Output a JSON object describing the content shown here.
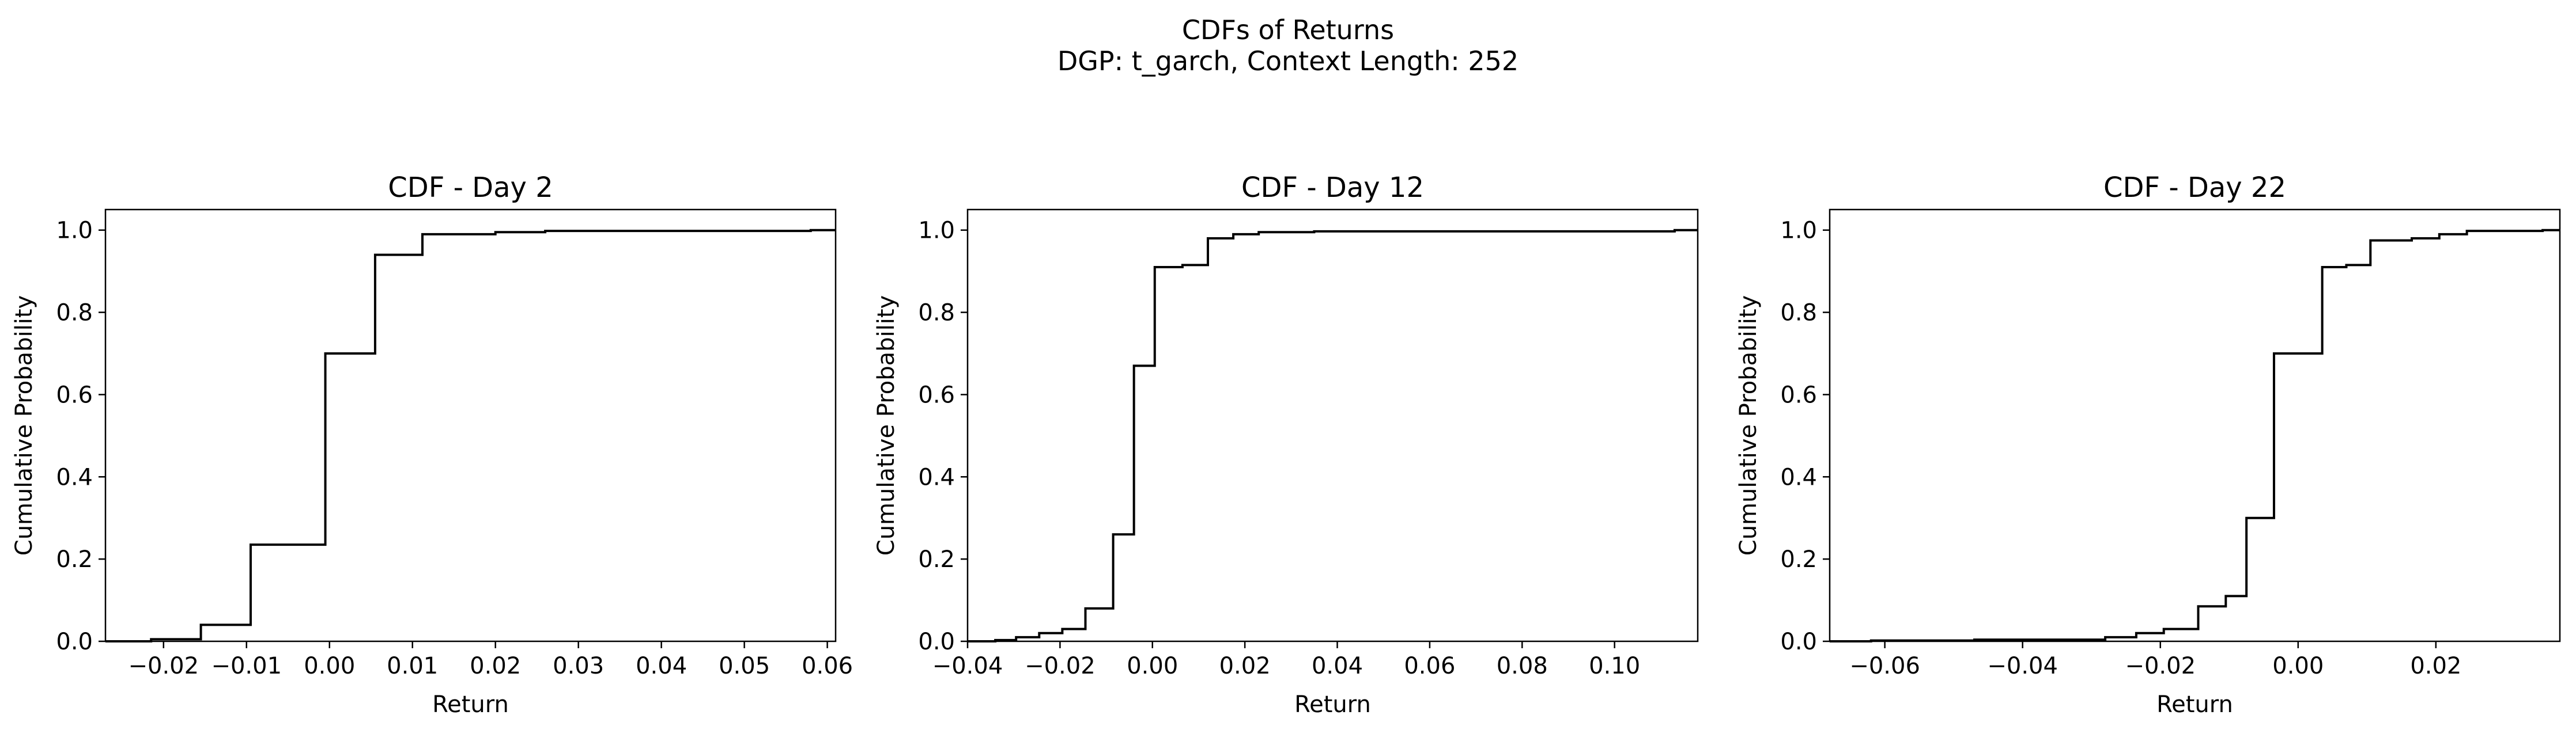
{
  "figure": {
    "title_line1": "CDFs of Returns",
    "title_line2": "DGP: t_garch, Context Length: 252"
  },
  "chart_data": [
    {
      "type": "line",
      "drawstyle": "steps",
      "title": "CDF - Day 2",
      "xlabel": "Return",
      "ylabel": "Cumulative Probability",
      "xlim": [
        -0.027,
        0.061
      ],
      "ylim": [
        0.0,
        1.05
      ],
      "xticks": [
        -0.02,
        -0.01,
        0.0,
        0.01,
        0.02,
        0.03,
        0.04,
        0.05,
        0.06
      ],
      "xtick_labels": [
        "−0.02",
        "−0.01",
        "0.00",
        "0.01",
        "0.02",
        "0.03",
        "0.04",
        "0.05",
        "0.06"
      ],
      "yticks": [
        0.0,
        0.2,
        0.4,
        0.6,
        0.8,
        1.0
      ],
      "ytick_labels": [
        "0.0",
        "0.2",
        "0.4",
        "0.6",
        "0.8",
        "1.0"
      ],
      "grid": false,
      "color": "#000000",
      "series": [
        {
          "x": [
            -0.027,
            -0.0215,
            -0.0155,
            -0.0095,
            -0.0005,
            0.0055,
            0.0112,
            0.02,
            0.026,
            0.058,
            0.061
          ],
          "y": [
            0.0,
            0.005,
            0.04,
            0.235,
            0.7,
            0.94,
            0.99,
            0.995,
            0.998,
            1.0,
            1.0
          ]
        }
      ]
    },
    {
      "type": "line",
      "drawstyle": "steps",
      "title": "CDF - Day 12",
      "xlabel": "Return",
      "ylabel": "Cumulative Probability",
      "xlim": [
        -0.04,
        0.118
      ],
      "ylim": [
        0.0,
        1.05
      ],
      "xticks": [
        -0.04,
        -0.02,
        0.0,
        0.02,
        0.04,
        0.06,
        0.08,
        0.1
      ],
      "xtick_labels": [
        "−0.04",
        "−0.02",
        "0.00",
        "0.02",
        "0.04",
        "0.06",
        "0.08",
        "0.10"
      ],
      "yticks": [
        0.0,
        0.2,
        0.4,
        0.6,
        0.8,
        1.0
      ],
      "ytick_labels": [
        "0.0",
        "0.2",
        "0.4",
        "0.6",
        "0.8",
        "1.0"
      ],
      "grid": false,
      "color": "#000000",
      "series": [
        {
          "x": [
            -0.04,
            -0.034,
            -0.0295,
            -0.0245,
            -0.0195,
            -0.0145,
            -0.0085,
            -0.004,
            0.0005,
            0.0065,
            0.012,
            0.0175,
            0.023,
            0.035,
            0.113,
            0.118
          ],
          "y": [
            0.0,
            0.003,
            0.01,
            0.02,
            0.03,
            0.08,
            0.26,
            0.67,
            0.91,
            0.915,
            0.98,
            0.99,
            0.995,
            0.997,
            1.0,
            1.0
          ]
        }
      ]
    },
    {
      "type": "line",
      "drawstyle": "steps",
      "title": "CDF - Day 22",
      "xlabel": "Return",
      "ylabel": "Cumulative Probability",
      "xlim": [
        -0.068,
        0.038
      ],
      "ylim": [
        0.0,
        1.05
      ],
      "xticks": [
        -0.06,
        -0.04,
        -0.02,
        0.0,
        0.02
      ],
      "xtick_labels": [
        "−0.06",
        "−0.04",
        "−0.02",
        "0.00",
        "0.02"
      ],
      "yticks": [
        0.0,
        0.2,
        0.4,
        0.6,
        0.8,
        1.0
      ],
      "ytick_labels": [
        "0.0",
        "0.2",
        "0.4",
        "0.6",
        "0.8",
        "1.0"
      ],
      "grid": false,
      "color": "#000000",
      "series": [
        {
          "x": [
            -0.068,
            -0.062,
            -0.047,
            -0.028,
            -0.0235,
            -0.0195,
            -0.0145,
            -0.0105,
            -0.0075,
            -0.0035,
            0.0035,
            0.007,
            0.0105,
            0.0165,
            0.0205,
            0.0245,
            0.0355,
            0.038
          ],
          "y": [
            0.0,
            0.002,
            0.004,
            0.01,
            0.02,
            0.03,
            0.085,
            0.11,
            0.3,
            0.7,
            0.91,
            0.915,
            0.975,
            0.98,
            0.99,
            0.998,
            1.0,
            1.0
          ]
        }
      ]
    }
  ]
}
